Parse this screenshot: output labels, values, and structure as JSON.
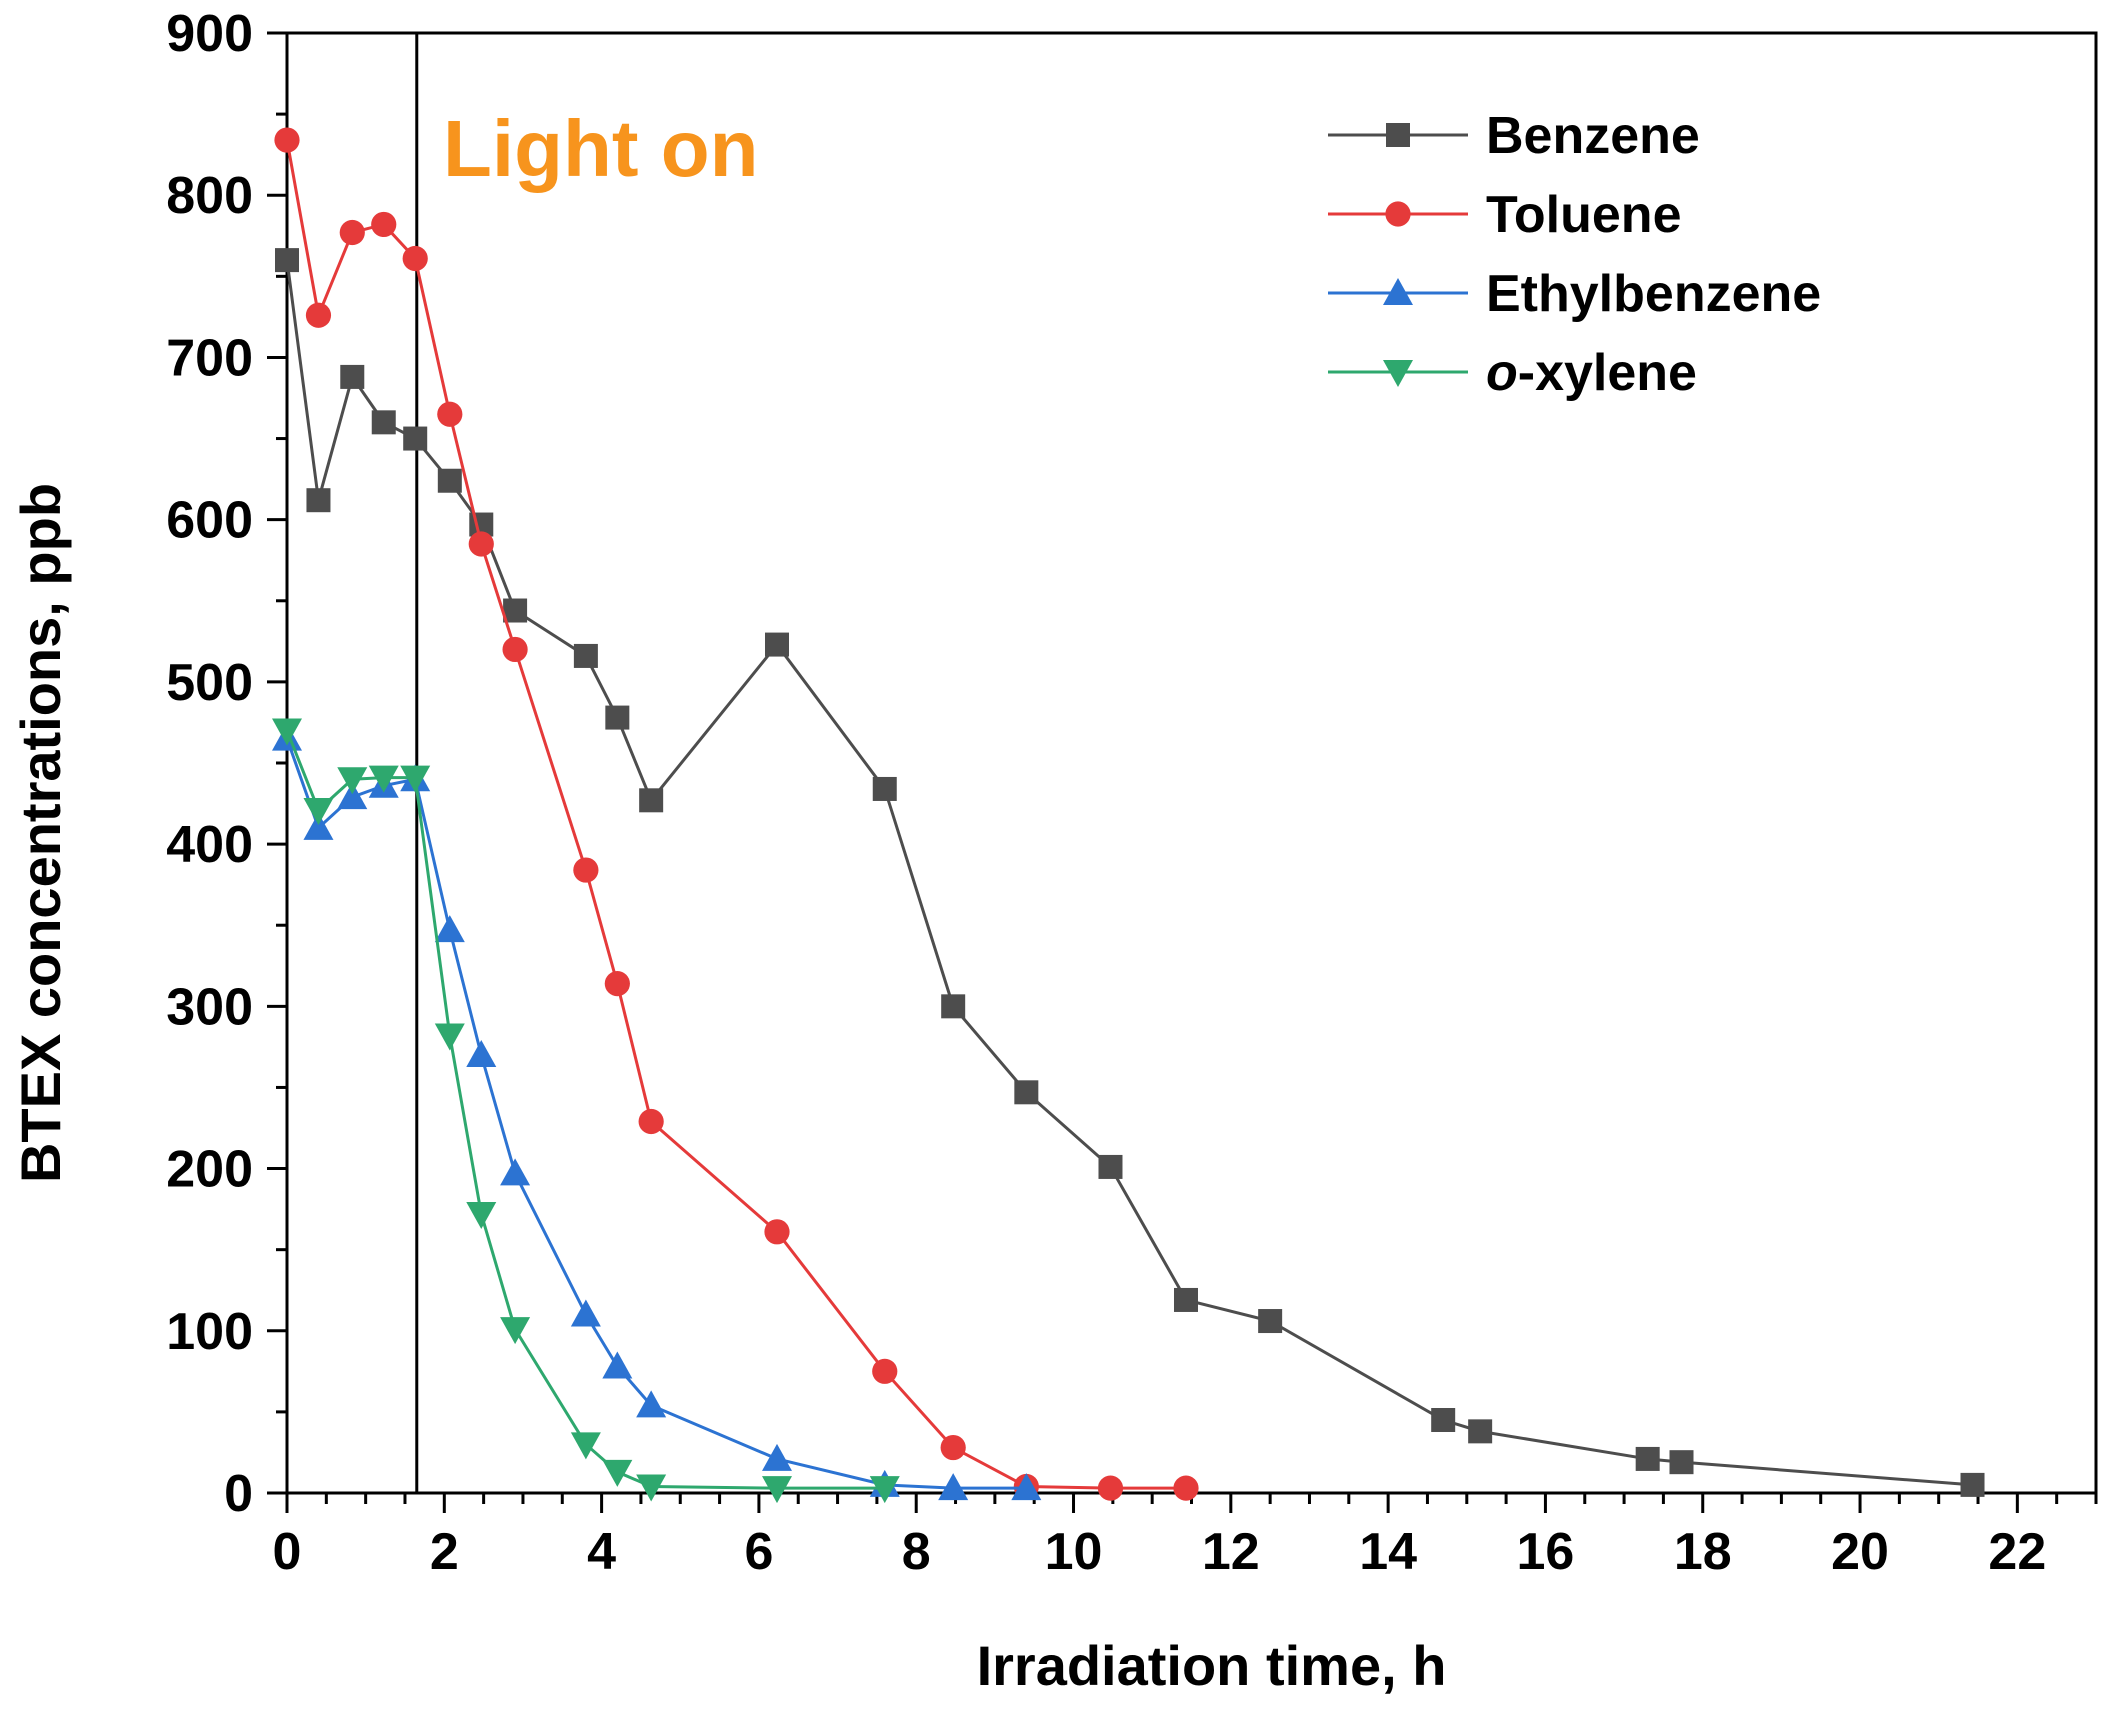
{
  "chart_data": {
    "type": "line",
    "title": "",
    "xlabel": "Irradiation time, h",
    "ylabel": "BTEX concentrations, ppb",
    "xlim": [
      0,
      23
    ],
    "ylim": [
      0,
      900
    ],
    "xticks": [
      0,
      2,
      4,
      6,
      8,
      10,
      12,
      14,
      16,
      18,
      20,
      22
    ],
    "yticks": [
      0,
      100,
      200,
      300,
      400,
      500,
      600,
      700,
      800,
      900
    ],
    "grid": false,
    "legend_position": "top-right",
    "annotation": {
      "text": "Light on",
      "color": "#f7941d",
      "marker_line_x": 1.65
    },
    "series": [
      {
        "name": "Benzene",
        "color": "#4d4d4d",
        "marker": "square",
        "x": [
          0,
          0.4,
          0.83,
          1.23,
          1.63,
          2.07,
          2.47,
          2.9,
          3.8,
          4.2,
          4.63,
          6.23,
          7.6,
          8.47,
          9.4,
          10.47,
          11.43,
          12.5,
          14.7,
          15.17,
          17.3,
          17.73,
          21.43
        ],
        "y": [
          760,
          612,
          688,
          660,
          650,
          624,
          597,
          544,
          516,
          478,
          427,
          523,
          434,
          300,
          247,
          201,
          119,
          106,
          45,
          38,
          21,
          19,
          5
        ]
      },
      {
        "name": "Toluene",
        "color": "#e53a3a",
        "marker": "circle",
        "x": [
          0,
          0.4,
          0.83,
          1.23,
          1.63,
          2.07,
          2.47,
          2.9,
          3.8,
          4.2,
          4.63,
          6.23,
          7.6,
          8.47,
          9.4,
          10.47,
          11.43
        ],
        "y": [
          834,
          726,
          777,
          782,
          761,
          665,
          585,
          520,
          384,
          314,
          229,
          161,
          75,
          28,
          4,
          3,
          3
        ]
      },
      {
        "name": "Ethylbenzene",
        "color": "#2c73d2",
        "marker": "triangle-up",
        "x": [
          0,
          0.4,
          0.83,
          1.23,
          1.63,
          2.07,
          2.47,
          2.9,
          3.8,
          4.2,
          4.63,
          6.23,
          7.6,
          8.47,
          9.4
        ],
        "y": [
          465,
          410,
          429,
          436,
          440,
          347,
          270,
          197,
          110,
          78,
          54,
          21,
          5,
          3,
          3
        ]
      },
      {
        "name": "o-xylene",
        "color": "#2ea86e",
        "marker": "triangle-down",
        "x": [
          0,
          0.4,
          0.83,
          1.23,
          1.63,
          2.07,
          2.47,
          2.9,
          3.8,
          4.2,
          4.63,
          6.23,
          7.6
        ],
        "y": [
          470,
          421,
          440,
          441,
          441,
          282,
          172,
          101,
          30,
          13,
          4,
          3,
          3
        ]
      }
    ],
    "legend": [
      {
        "prefix": "",
        "italic": "",
        "text": "Benzene"
      },
      {
        "prefix": "",
        "italic": "",
        "text": "Toluene"
      },
      {
        "prefix": "",
        "italic": "",
        "text": "Ethylbenzene"
      },
      {
        "prefix": "",
        "italic": "o",
        "text": "-xylene"
      }
    ]
  }
}
